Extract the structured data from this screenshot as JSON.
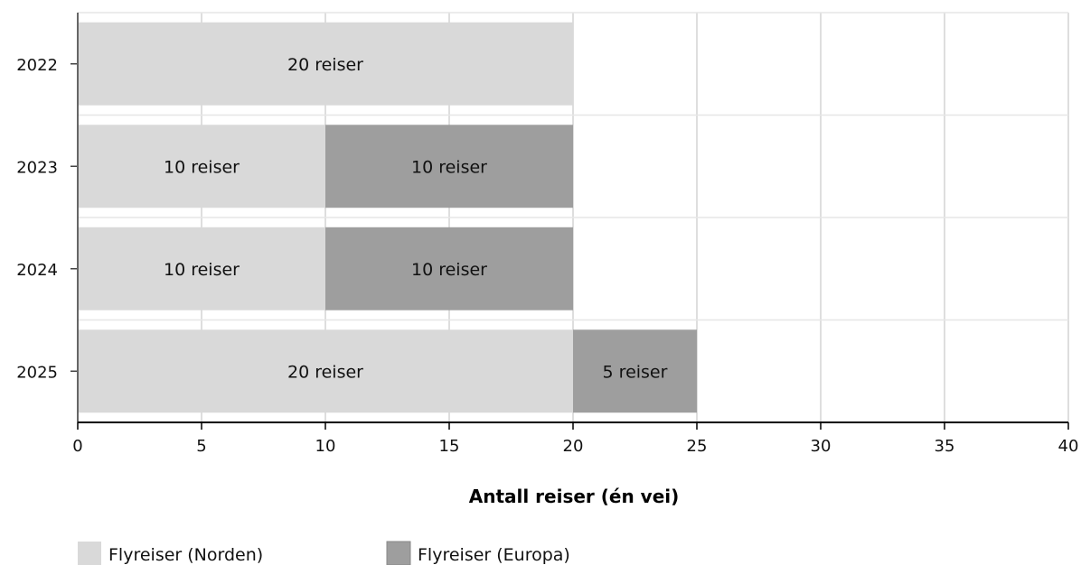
{
  "chart_data": {
    "type": "bar",
    "orientation": "horizontal",
    "stacked": true,
    "categories": [
      "2022",
      "2023",
      "2024",
      "2025"
    ],
    "series": [
      {
        "name": "Flyreiser (Norden)",
        "color": "#d9d9d9",
        "values": [
          20,
          10,
          10,
          20
        ],
        "labels": [
          "20 reiser",
          "10 reiser",
          "10 reiser",
          "20 reiser"
        ]
      },
      {
        "name": "Flyreiser (Europa)",
        "color": "#9e9e9e",
        "values": [
          0,
          10,
          10,
          5
        ],
        "labels": [
          "",
          "10 reiser",
          "10 reiser",
          "5 reiser"
        ]
      }
    ],
    "xlabel": "Antall reiser (én vei)",
    "ylabel": "",
    "xlim": [
      0,
      40
    ],
    "xticks": [
      "0",
      "5",
      "10",
      "15",
      "20",
      "25",
      "30",
      "35",
      "40"
    ],
    "grid": true,
    "legend_position": "bottom-left"
  }
}
